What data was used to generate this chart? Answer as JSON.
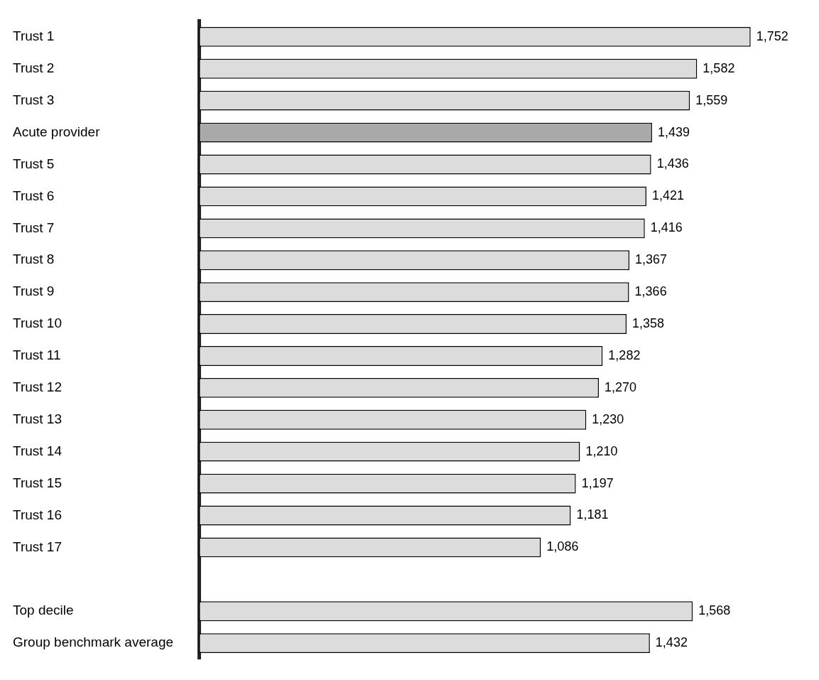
{
  "chart_data": {
    "type": "bar",
    "orientation": "horizontal",
    "grid": false,
    "legend": false,
    "categories": [
      "Trust 1",
      "Trust 2",
      "Trust 3",
      "Acute provider",
      "Trust 5",
      "Trust 6",
      "Trust 7",
      "Trust 8",
      "Trust 9",
      "Trust 10",
      "Trust 11",
      "Trust 12",
      "Trust 13",
      "Trust 14",
      "Trust 15",
      "Trust 16",
      "Trust 17",
      null,
      "Top decile",
      "Group benchmark average"
    ],
    "values": [
      1752,
      1582,
      1559,
      1439,
      1436,
      1421,
      1416,
      1367,
      1366,
      1358,
      1282,
      1270,
      1230,
      1210,
      1197,
      1181,
      1086,
      null,
      1568,
      1432
    ],
    "value_labels": [
      "1,752",
      "1,582",
      "1,559",
      "1,439",
      "1,436",
      "1,421",
      "1,416",
      "1,367",
      "1,366",
      "1,358",
      "1,282",
      "1,270",
      "1,230",
      "1,210",
      "1,197",
      "1,181",
      "1,086",
      null,
      "1,568",
      "1,432"
    ],
    "colors": [
      "#dcdcdc",
      "#dcdcdc",
      "#dcdcdc",
      "#a9a9a9",
      "#dcdcdc",
      "#dcdcdc",
      "#dcdcdc",
      "#dcdcdc",
      "#dcdcdc",
      "#dcdcdc",
      "#dcdcdc",
      "#dcdcdc",
      "#dcdcdc",
      "#dcdcdc",
      "#dcdcdc",
      "#dcdcdc",
      "#dcdcdc",
      "#dcdcdc",
      "#dcdcdc",
      "#dcdcdc"
    ]
  }
}
